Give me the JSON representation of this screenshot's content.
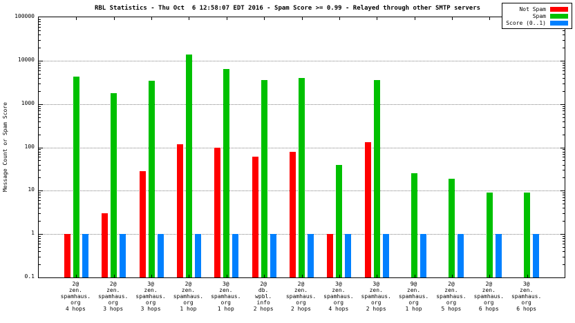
{
  "title": "RBL Statistics - Thu Oct  6 12:58:07 EDT 2016 - Spam Score >= 0.99 - Relayed through other SMTP servers",
  "ylabel": "Message Count or Spam Score",
  "chart_data": {
    "type": "bar",
    "yscale": "log",
    "ylim": [
      0.1,
      100000
    ],
    "grid": "horizontal-dotted",
    "legend_position": "top-right",
    "yticks": [
      {
        "label": "100000",
        "value": 100000
      },
      {
        "label": "10000",
        "value": 10000
      },
      {
        "label": "1000",
        "value": 1000
      },
      {
        "label": "100",
        "value": 100
      },
      {
        "label": "10",
        "value": 10
      },
      {
        "label": "1",
        "value": 1
      },
      {
        "label": "0.1",
        "value": 0.1
      }
    ],
    "categories": [
      [
        "2@",
        "zen.",
        "spamhaus.",
        "org",
        "4 hops"
      ],
      [
        "2@",
        "zen.",
        "spamhaus.",
        "org",
        "3 hops"
      ],
      [
        "3@",
        "zen.",
        "spamhaus.",
        "org",
        "3 hops"
      ],
      [
        "2@",
        "zen.",
        "spamhaus.",
        "org",
        "1 hop"
      ],
      [
        "3@",
        "zen.",
        "spamhaus.",
        "org",
        "1 hop"
      ],
      [
        "2@",
        "db.",
        "wpbl.",
        "info",
        "2 hops"
      ],
      [
        "2@",
        "zen.",
        "spamhaus.",
        "org",
        "2 hops"
      ],
      [
        "3@",
        "zen.",
        "spamhaus.",
        "org",
        "4 hops"
      ],
      [
        "3@",
        "zen.",
        "spamhaus.",
        "org",
        "2 hops"
      ],
      [
        "9@",
        "zen.",
        "spamhaus.",
        "org",
        "1 hop"
      ],
      [
        "2@",
        "zen.",
        "spamhaus.",
        "org",
        "5 hops"
      ],
      [
        "2@",
        "zen.",
        "spamhaus.",
        "org",
        "6 hops"
      ],
      [
        "3@",
        "zen.",
        "spamhaus.",
        "org",
        "6 hops"
      ]
    ],
    "series": [
      {
        "name": "Not Spam",
        "color": "#ff0000",
        "values": [
          1,
          3,
          28,
          120,
          100,
          60,
          80,
          1,
          130,
          null,
          null,
          null,
          null
        ]
      },
      {
        "name": "Spam",
        "color": "#00c000",
        "values": [
          4300,
          1800,
          3400,
          14000,
          6500,
          3500,
          4000,
          40,
          3600,
          25,
          19,
          9,
          9
        ]
      },
      {
        "name": "Score (0..1)",
        "color": "#0080ff",
        "values": [
          1,
          1,
          1,
          1,
          1,
          1,
          1,
          1,
          1,
          1,
          1,
          1,
          1
        ]
      }
    ]
  }
}
